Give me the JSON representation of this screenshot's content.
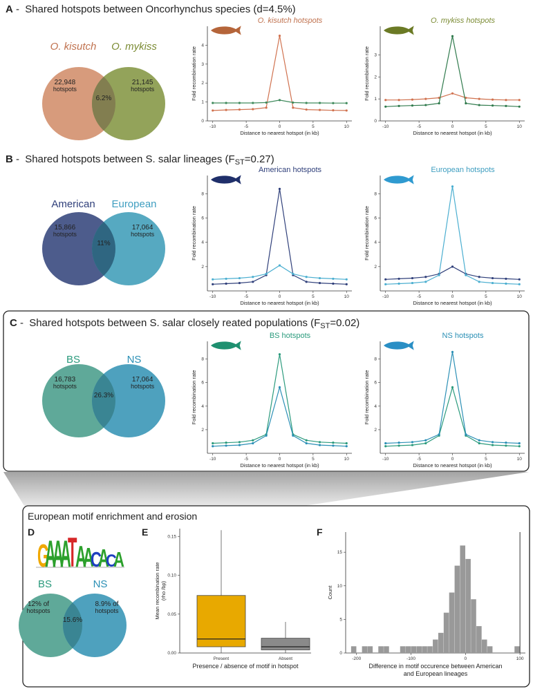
{
  "sections": [
    {
      "letter": "A",
      "dash": " -",
      "title": "Shared hotspots between Oncorhynchus species (d=4.5%)"
    },
    {
      "letter": "B",
      "dash": " -",
      "title": "Shared hotspots between S. salar lineages (F",
      "sub": "ST",
      "title_end": "=0.27)"
    },
    {
      "letter": "C",
      "dash": " -",
      "title": "Shared hotspots between S. salar closely reated populations (F",
      "sub": "ST",
      "title_end": "=0.02)"
    }
  ],
  "venns": [
    {
      "left_label": "O. kisutch",
      "right_label": "O. mykiss",
      "left_italic": true,
      "left_count": "22,948",
      "left_unit": "hotspots",
      "right_count": "21,145",
      "right_unit": "hotspots",
      "overlap": "6.2%",
      "left_color": "#d79b7c",
      "right_color": "#93a35a",
      "left_text_color": "#c0724f",
      "right_text_color": "#7c8c35",
      "overlap_color": "#827e50"
    },
    {
      "left_label": "American",
      "right_label": "European",
      "left_italic": false,
      "left_count": "15,866",
      "left_unit": "hotspots",
      "right_count": "17,064",
      "right_unit": "hotspots",
      "overlap": "11%",
      "left_color": "#4d5c8c",
      "right_color": "#56a9c1",
      "left_text_color": "#2f3f7a",
      "right_text_color": "#3f9ec0",
      "overlap_color": "#2f6681"
    },
    {
      "left_label": "BS",
      "right_label": "NS",
      "left_italic": false,
      "left_count": "16,783",
      "left_unit": "hotspots",
      "right_count": "17,064",
      "right_unit": "hotspots",
      "overlap": "26.3%",
      "left_color": "#5fa999",
      "right_color": "#4ea1be",
      "left_text_color": "#2a9a7c",
      "right_text_color": "#2a8fb5",
      "overlap_color": "#3a8593"
    },
    {
      "left_label": "BS",
      "right_label": "NS",
      "left_italic": false,
      "left_count": "12% of",
      "left_unit": "hotspots",
      "right_count": "8.9% of",
      "right_unit": "hotspots",
      "overlap": "15.6%",
      "left_color": "#5fa999",
      "right_color": "#4ea1be",
      "left_text_color": "#2a9a7c",
      "right_text_color": "#2a8fb5",
      "overlap_color": "#3a8593"
    }
  ],
  "bottom_box": {
    "title": "European motif enrichment and erosion",
    "labels": [
      "D",
      "E",
      "F"
    ]
  },
  "motif": {
    "sequence": [
      "G",
      "A",
      "A",
      "A",
      "T",
      "A",
      "A",
      "C",
      "A",
      "C",
      "A"
    ],
    "colors": {
      "A": "#2ca02c",
      "C": "#1f3fbf",
      "G": "#f0a800",
      "T": "#d62728"
    }
  },
  "chart_data": [
    {
      "type": "line",
      "title": "O. kisutch hotspots",
      "title_color": "#c0724f",
      "title_italic": true,
      "fish_color": "#b5653a",
      "xlabel": "Distance to nearest hotspot (in kb)",
      "ylabel": "Fold recombination rate",
      "x": [
        -10,
        -8,
        -6,
        -4,
        -2,
        0,
        2,
        4,
        6,
        8,
        10
      ],
      "xticks": [
        -10,
        -5,
        0,
        5,
        10
      ],
      "yticks": [
        0,
        1,
        2,
        3,
        4
      ],
      "ylim": [
        0,
        5
      ],
      "series": [
        {
          "name": "O. kisutch",
          "color": "#d0714e",
          "values": [
            0.55,
            0.58,
            0.6,
            0.62,
            0.7,
            4.5,
            0.7,
            0.6,
            0.58,
            0.56,
            0.55
          ]
        },
        {
          "name": "O. mykiss",
          "color": "#3f8a5c",
          "values": [
            0.95,
            0.95,
            0.95,
            0.95,
            0.97,
            1.1,
            0.97,
            0.95,
            0.95,
            0.94,
            0.94
          ]
        }
      ]
    },
    {
      "type": "line",
      "title": "O. mykiss hotspots",
      "title_color": "#7c8c35",
      "title_italic": true,
      "fish_color": "#6b7a25",
      "xlabel": "Distance to nearest hotspot (in kb)",
      "ylabel": "Fold recombination rate",
      "x": [
        -10,
        -8,
        -6,
        -4,
        -2,
        0,
        2,
        4,
        6,
        8,
        10
      ],
      "xticks": [
        -10,
        -5,
        0,
        5,
        10
      ],
      "yticks": [
        0,
        1,
        2,
        3
      ],
      "ylim": [
        0,
        4.3
      ],
      "series": [
        {
          "name": "O. kisutch",
          "color": "#d0714e",
          "values": [
            0.95,
            0.95,
            0.97,
            1.0,
            1.05,
            1.25,
            1.05,
            1.0,
            0.97,
            0.95,
            0.95
          ]
        },
        {
          "name": "O. mykiss",
          "color": "#2f7a4c",
          "values": [
            0.65,
            0.68,
            0.7,
            0.72,
            0.8,
            3.85,
            0.8,
            0.72,
            0.7,
            0.68,
            0.65
          ]
        }
      ]
    },
    {
      "type": "line",
      "title": "American hotspots",
      "title_color": "#2f3f7a",
      "title_italic": false,
      "fish_color": "#1f2f6a",
      "xlabel": "Distance to nearest hotspot (in kb)",
      "ylabel": "Fold recombination rate",
      "x": [
        -10,
        -8,
        -6,
        -4,
        -2,
        0,
        2,
        4,
        6,
        8,
        10
      ],
      "xticks": [
        -10,
        -5,
        0,
        5,
        10
      ],
      "yticks": [
        2,
        4,
        6,
        8
      ],
      "ylim": [
        0,
        9.5
      ],
      "series": [
        {
          "name": "American",
          "color": "#2f3f7a",
          "values": [
            0.55,
            0.6,
            0.65,
            0.75,
            1.3,
            8.4,
            1.3,
            0.75,
            0.65,
            0.6,
            0.55
          ]
        },
        {
          "name": "European",
          "color": "#4aaed0",
          "values": [
            0.95,
            1.0,
            1.05,
            1.15,
            1.4,
            2.1,
            1.4,
            1.15,
            1.05,
            1.0,
            0.95
          ]
        }
      ]
    },
    {
      "type": "line",
      "title": "European hotspots",
      "title_color": "#3f9ec0",
      "title_italic": false,
      "fish_color": "#2f9ad0",
      "xlabel": "Distance to nearest hotspot (in kb)",
      "ylabel": "Fold recombination rate",
      "x": [
        -10,
        -8,
        -6,
        -4,
        -2,
        0,
        2,
        4,
        6,
        8,
        10
      ],
      "xticks": [
        -10,
        -5,
        0,
        5,
        10
      ],
      "yticks": [
        2,
        4,
        6,
        8
      ],
      "ylim": [
        0,
        9.5
      ],
      "series": [
        {
          "name": "American",
          "color": "#2f3f7a",
          "values": [
            0.95,
            1.0,
            1.05,
            1.15,
            1.4,
            2.0,
            1.4,
            1.15,
            1.05,
            1.0,
            0.95
          ]
        },
        {
          "name": "European",
          "color": "#4aaed0",
          "values": [
            0.55,
            0.6,
            0.65,
            0.75,
            1.3,
            8.6,
            1.3,
            0.75,
            0.65,
            0.6,
            0.55
          ]
        }
      ]
    },
    {
      "type": "line",
      "title": "BS hotspots",
      "title_color": "#2a9a7c",
      "title_italic": false,
      "fish_color": "#1f9070",
      "xlabel": "Distance to nearest hotspot (in kb)",
      "ylabel": "Fold recombination rate",
      "x": [
        -10,
        -8,
        -6,
        -4,
        -2,
        0,
        2,
        4,
        6,
        8,
        10
      ],
      "xticks": [
        -10,
        -5,
        0,
        5,
        10
      ],
      "yticks": [
        2,
        4,
        6,
        8
      ],
      "ylim": [
        0,
        9.5
      ],
      "series": [
        {
          "name": "BS",
          "color": "#2a9a7c",
          "values": [
            0.85,
            0.9,
            0.95,
            1.1,
            1.6,
            8.4,
            1.6,
            1.1,
            0.95,
            0.9,
            0.85
          ]
        },
        {
          "name": "NS",
          "color": "#2a8fb5",
          "values": [
            0.6,
            0.65,
            0.7,
            0.85,
            1.5,
            5.6,
            1.5,
            0.85,
            0.7,
            0.65,
            0.6
          ]
        }
      ]
    },
    {
      "type": "line",
      "title": "NS hotspots",
      "title_color": "#2a8fb5",
      "title_italic": false,
      "fish_color": "#2a8fc5",
      "xlabel": "Distance to nearest hotspot (in kb)",
      "ylabel": "Fold recombination rate",
      "x": [
        -10,
        -8,
        -6,
        -4,
        -2,
        0,
        2,
        4,
        6,
        8,
        10
      ],
      "xticks": [
        -10,
        -5,
        0,
        5,
        10
      ],
      "yticks": [
        2,
        4,
        6,
        8
      ],
      "ylim": [
        0,
        9.5
      ],
      "series": [
        {
          "name": "BS",
          "color": "#2a9a7c",
          "values": [
            0.6,
            0.65,
            0.7,
            0.85,
            1.5,
            5.6,
            1.5,
            0.85,
            0.7,
            0.65,
            0.6
          ]
        },
        {
          "name": "NS",
          "color": "#2a8fb5",
          "values": [
            0.85,
            0.9,
            0.95,
            1.1,
            1.6,
            8.6,
            1.6,
            1.1,
            0.95,
            0.9,
            0.85
          ]
        }
      ]
    },
    {
      "type": "box",
      "xlabel": "Presence / absence of motif in hotspot",
      "ylabel": "Mean recombination rate",
      "ylabel2": "(rho /bp)",
      "ylim": [
        0,
        0.16
      ],
      "yticks": [
        0.0,
        0.05,
        0.1,
        0.15
      ],
      "categories": [
        "Present",
        "Absent"
      ],
      "boxes": [
        {
          "category": "Present",
          "min": 0.0,
          "q1": 0.008,
          "median": 0.018,
          "q3": 0.074,
          "max": 0.158,
          "color": "#e8a900"
        },
        {
          "category": "Absent",
          "min": 0.0,
          "q1": 0.004,
          "median": 0.008,
          "q3": 0.019,
          "max": 0.04,
          "color": "#8a8a8a"
        }
      ]
    },
    {
      "type": "histogram",
      "xlabel": "Difference in motif occurence between American",
      "xlabel2": "and European lineages",
      "ylabel": "Count",
      "xlim": [
        -220,
        110
      ],
      "ylim": [
        0,
        18
      ],
      "xticks": [
        -200,
        -100,
        0,
        100
      ],
      "yticks": [
        0,
        5,
        10,
        15
      ],
      "vline": 100,
      "bar_color": "#999999",
      "bins": [
        -210,
        -200,
        -190,
        -180,
        -170,
        -160,
        -150,
        -140,
        -130,
        -120,
        -110,
        -100,
        -90,
        -80,
        -70,
        -60,
        -50,
        -40,
        -30,
        -20,
        -10,
        0,
        10,
        20,
        30,
        40,
        50,
        60,
        70,
        80,
        90,
        100,
        110
      ],
      "counts": [
        1,
        0,
        1,
        1,
        0,
        1,
        1,
        0,
        0,
        1,
        1,
        1,
        1,
        1,
        1,
        2,
        3,
        6,
        9,
        13,
        16,
        14,
        8,
        4,
        2,
        1,
        0,
        0,
        0,
        0,
        1,
        0
      ]
    }
  ]
}
